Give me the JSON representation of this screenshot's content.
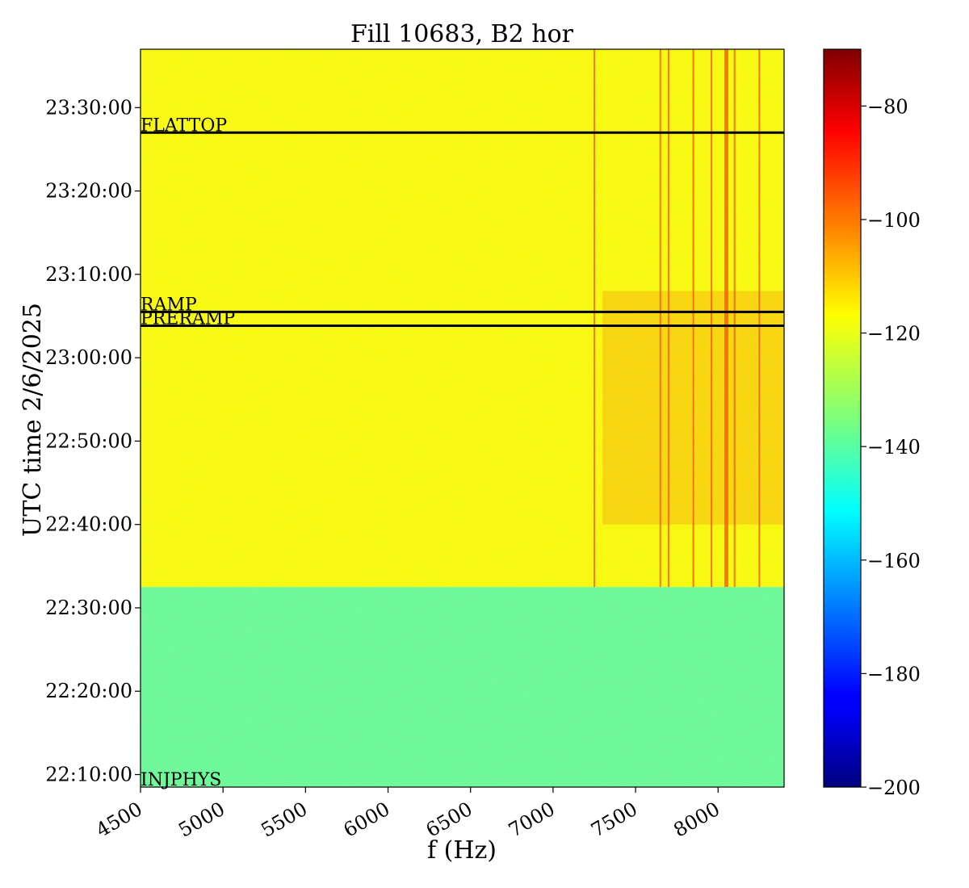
{
  "chart_data": {
    "type": "heatmap",
    "title": "Fill 10683, B2 hor",
    "xlabel": "f (Hz)",
    "ylabel": "UTC time 2/6/2025",
    "xlim": [
      4500,
      8400
    ],
    "x_ticks": [
      4500,
      5000,
      5500,
      6000,
      6500,
      7000,
      7500,
      8000
    ],
    "x_tick_labels": [
      "4500",
      "5000",
      "5500",
      "6000",
      "6500",
      "7000",
      "7500",
      "8000"
    ],
    "ylim": [
      "22:08:30",
      "23:37:00"
    ],
    "y_ticks": [
      "22:10:00",
      "22:20:00",
      "22:30:00",
      "22:40:00",
      "22:50:00",
      "23:00:00",
      "23:10:00",
      "23:20:00",
      "23:30:00"
    ],
    "colorbar": {
      "colormap": "jet",
      "range": [
        -200,
        -70
      ],
      "ticks": [
        -80,
        -100,
        -120,
        -140,
        -160,
        -180,
        -200
      ],
      "tick_labels": [
        "−80",
        "−100",
        "−120",
        "−140",
        "−160",
        "−180",
        "−200"
      ]
    },
    "regions": [
      {
        "from": "22:08:30",
        "to": "22:32:30",
        "level_dB": -138
      },
      {
        "from": "22:32:30",
        "to": "23:37:00",
        "level_dB": -119
      }
    ],
    "phase_markers": [
      {
        "label": "FLATTOP",
        "time": "23:27:00"
      },
      {
        "label": "RAMP",
        "time": "23:05:30"
      },
      {
        "label": "PRERAMP",
        "time": "23:03:50"
      },
      {
        "label": "INJPHYS",
        "time": "22:08:30"
      }
    ],
    "hot_lines_hz": [
      7250,
      7650,
      7700,
      7850,
      7960,
      8050,
      8100,
      8250
    ],
    "hot_region": {
      "f_from": 7300,
      "f_to": 8400,
      "t_from": "22:40:00",
      "t_to": "23:08:00",
      "level_dB": -108
    }
  }
}
